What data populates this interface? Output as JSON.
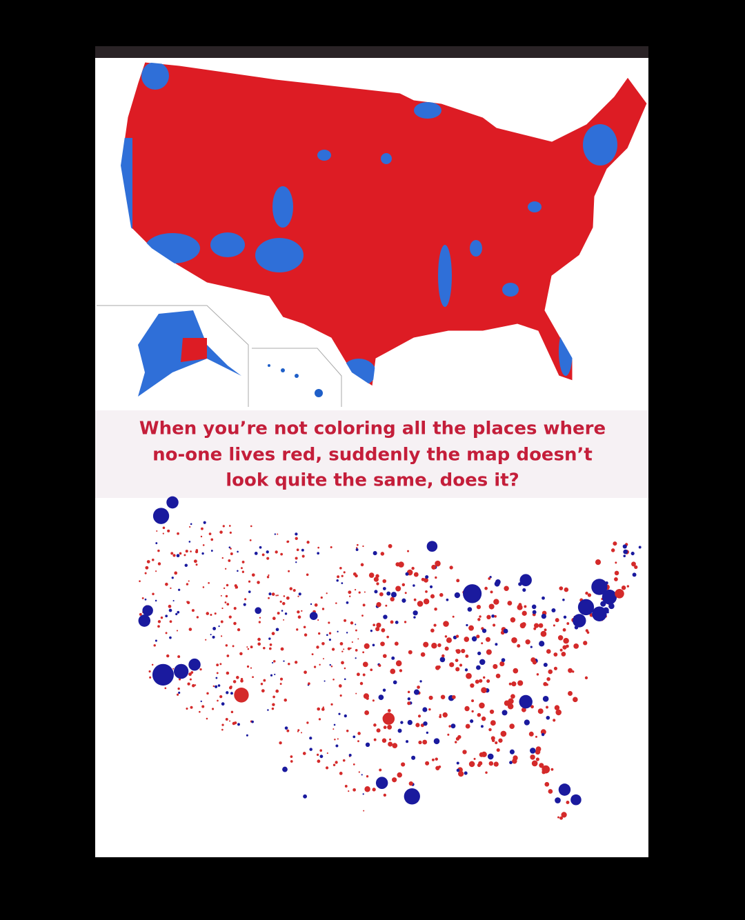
{
  "caption": {
    "lines": [
      "When you’re not coloring all the places where",
      "no-one lives red, suddenly the map doesn’t",
      "look quite the same, does it?"
    ]
  }
}
